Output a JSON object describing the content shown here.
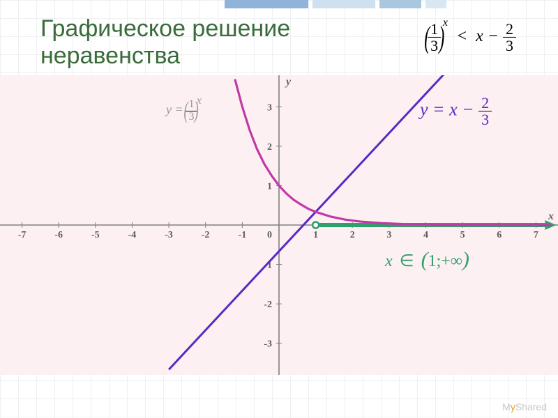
{
  "title_color": "#3a6b3a",
  "title_fontsize": 34,
  "title_line1": "Графическое решение",
  "title_line2": "неравенства",
  "inequality": {
    "base_num": "1",
    "base_den": "3",
    "exp": "x",
    "rel": "<",
    "rhs_var": "x",
    "rhs_minus": "−",
    "rhs_num": "2",
    "rhs_den": "3"
  },
  "chart": {
    "type": "xy-plot",
    "background_color": "#fcf0f2",
    "xlim": [
      -7.6,
      7.6
    ],
    "ylim": [
      -3.8,
      3.8
    ],
    "x_ticks": [
      -7,
      -6,
      -5,
      -4,
      -3,
      -2,
      -1,
      0,
      1,
      2,
      3,
      4,
      5,
      6,
      7
    ],
    "y_ticks_pos": [
      1,
      2,
      3
    ],
    "y_ticks_neg": [
      -1,
      -2,
      -3
    ],
    "x_axis_label": "x",
    "y_axis_label": "y",
    "axis_color": "#808080",
    "tick_label_color": "#5c5c5c",
    "origin_label": "0",
    "curve_exp": {
      "color": "#c238a6",
      "points": [
        [
          -1.2,
          3.7
        ],
        [
          -1.0,
          3.0
        ],
        [
          -0.8,
          2.41
        ],
        [
          -0.6,
          1.93
        ],
        [
          -0.4,
          1.55
        ],
        [
          -0.2,
          1.25
        ],
        [
          0,
          1.0
        ],
        [
          0.2,
          0.8
        ],
        [
          0.4,
          0.64
        ],
        [
          0.6,
          0.52
        ],
        [
          0.8,
          0.41
        ],
        [
          1.0,
          0.333
        ],
        [
          1.4,
          0.215
        ],
        [
          1.8,
          0.138
        ],
        [
          2.2,
          0.089
        ],
        [
          2.8,
          0.046
        ],
        [
          3.5,
          0.021
        ],
        [
          4.5,
          0.007
        ],
        [
          6.0,
          0.0015
        ],
        [
          7.4,
          0.0003
        ]
      ]
    },
    "curve_line": {
      "color": "#5a29c4",
      "points": [
        [
          -3.0,
          -3.666
        ],
        [
          7.4,
          6.733
        ]
      ]
    },
    "interval_ray": {
      "color": "#2fa06a",
      "from_x": 1,
      "arrow_to_x": 7.55
    },
    "intersection_x": 1
  },
  "label_exp": {
    "prefix": "y =",
    "base_num": "1",
    "base_den": "3",
    "exp": "x",
    "color": "#999999"
  },
  "label_line": {
    "text_var": "y = x −",
    "num": "2",
    "den": "3",
    "color": "#5a29c4"
  },
  "answer": {
    "var": "x",
    "in": "∈",
    "open": "(",
    "a": "1",
    "sep": ";",
    "b": "+∞",
    "close": ")",
    "color": "#2fa06a"
  },
  "top_deco": {
    "colors": [
      "#8fb3d9",
      "#cfe1ef",
      "#a9c8e0",
      "#d8e7f1"
    ],
    "widths": [
      120,
      90,
      60,
      30
    ]
  },
  "watermark": {
    "pre": "M",
    "mid": "y",
    "post": "Shared"
  }
}
